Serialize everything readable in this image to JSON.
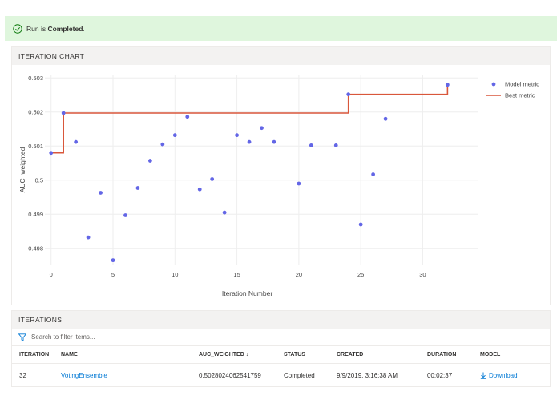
{
  "banner": {
    "prefix": "Run is",
    "status": "Completed",
    "suffix": "."
  },
  "chart_section": {
    "title": "ITERATION CHART"
  },
  "iterations_section": {
    "title": "ITERATIONS",
    "filter_placeholder": "Search to filter items...",
    "columns": [
      "ITERATION",
      "NAME",
      "AUC_WEIGHTED ↓",
      "STATUS",
      "CREATED",
      "DURATION",
      "MODEL"
    ],
    "rows": [
      {
        "iteration": "32",
        "name": "VotingEnsemble",
        "auc_weighted": "0.5028024062541759",
        "status": "Completed",
        "created": "9/9/2019, 3:16:38 AM",
        "duration": "00:02:37",
        "model": "Download"
      }
    ]
  },
  "colors": {
    "model_metric": "#6366e6",
    "best_metric": "#d9573b",
    "banner_bg": "#dff6dd",
    "success": "#107c10",
    "link": "#0078d4"
  },
  "icons": {
    "banner": "check-circle-icon",
    "filter": "filter-icon",
    "download": "download-icon"
  },
  "chart_data": {
    "type": "scatter",
    "title": "",
    "xlabel": "Iteration Number",
    "ylabel": "AUC_weighted",
    "xlim": [
      -0.5,
      34.5
    ],
    "ylim": [
      0.4975,
      0.5031
    ],
    "xticks": [
      0,
      5,
      10,
      15,
      20,
      25,
      30
    ],
    "yticks": [
      0.498,
      0.499,
      0.5,
      0.501,
      0.502,
      0.503
    ],
    "ytick_labels": [
      "0.498",
      "0.499",
      "0.5",
      "0.501",
      "0.502",
      "0.503"
    ],
    "grid": true,
    "legend_position": "top-right",
    "series": [
      {
        "name": "Model metric",
        "kind": "scatter",
        "points": [
          [
            0,
            0.5008
          ],
          [
            1,
            0.50197
          ],
          [
            2,
            0.50112
          ],
          [
            3,
            0.49832
          ],
          [
            4,
            0.49963
          ],
          [
            5,
            0.49765
          ],
          [
            6,
            0.49897
          ],
          [
            7,
            0.49977
          ],
          [
            8,
            0.50057
          ],
          [
            9,
            0.50105
          ],
          [
            10,
            0.50132
          ],
          [
            11,
            0.50186
          ],
          [
            12,
            0.49973
          ],
          [
            13,
            0.50003
          ],
          [
            14,
            0.49905
          ],
          [
            15,
            0.50132
          ],
          [
            16,
            0.50112
          ],
          [
            17,
            0.50153
          ],
          [
            18,
            0.50112
          ],
          [
            20,
            0.4999
          ],
          [
            21,
            0.50102
          ],
          [
            23,
            0.50102
          ],
          [
            24,
            0.50252
          ],
          [
            25,
            0.4987
          ],
          [
            26,
            0.50017
          ],
          [
            27,
            0.5018
          ],
          [
            32,
            0.5028
          ]
        ]
      },
      {
        "name": "Best metric",
        "kind": "step",
        "points": [
          [
            0,
            0.5008
          ],
          [
            1,
            0.5008
          ],
          [
            1,
            0.50197
          ],
          [
            24,
            0.50197
          ],
          [
            24,
            0.50252
          ],
          [
            32,
            0.50252
          ],
          [
            32,
            0.5028
          ]
        ]
      }
    ]
  }
}
